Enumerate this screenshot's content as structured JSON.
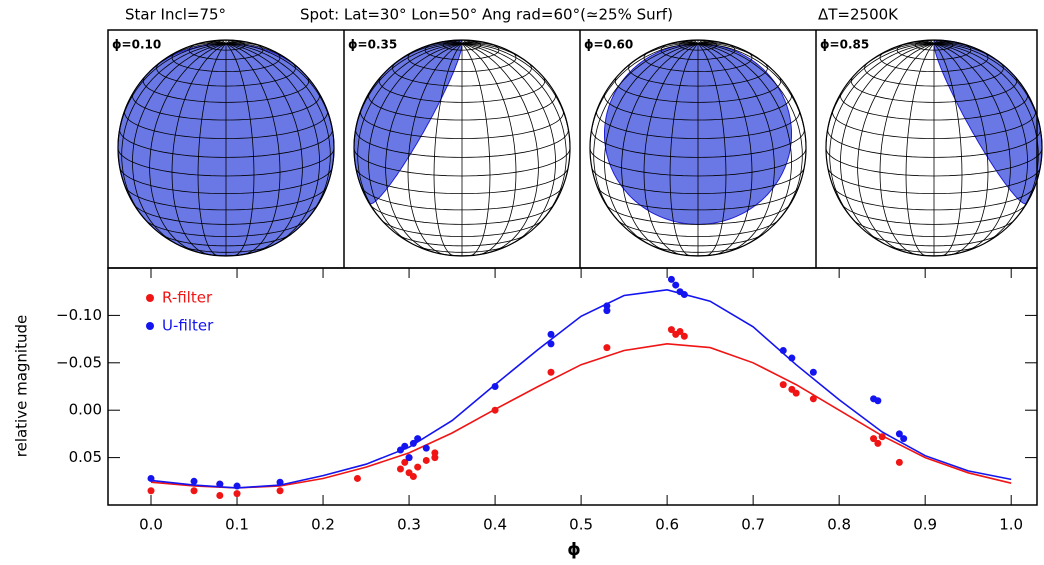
{
  "title_parts": [
    "Star Incl=75°",
    "Spot: Lat=30° Lon=50° Ang rad=60°(≃25% Surf)",
    "ΔT=2500K"
  ],
  "panels": [
    {
      "label": "ϕ=0.10"
    },
    {
      "label": "ϕ=0.35"
    },
    {
      "label": "ϕ=0.60"
    },
    {
      "label": "ϕ=0.85"
    }
  ],
  "chart_data": {
    "type": "scatter",
    "xlabel": "ϕ",
    "ylabel": "relative magnitude",
    "xlim": [
      -0.05,
      1.03
    ],
    "ylim": [
      0.1,
      -0.15
    ],
    "xticks": [
      {
        "value": 0,
        "label": "0.0"
      },
      {
        "value": 0.1,
        "label": "0.1"
      },
      {
        "value": 0.2,
        "label": "0.2"
      },
      {
        "value": 0.3,
        "label": "0.3"
      },
      {
        "value": 0.4,
        "label": "0.4"
      },
      {
        "value": 0.5,
        "label": "0.5"
      },
      {
        "value": 0.6,
        "label": "0.6"
      },
      {
        "value": 0.7,
        "label": "0.7"
      },
      {
        "value": 0.8,
        "label": "0.8"
      },
      {
        "value": 0.9,
        "label": "0.9"
      },
      {
        "value": 1.0,
        "label": "1.0"
      }
    ],
    "yticks": [
      {
        "value": -0.1,
        "label": "−0.10"
      },
      {
        "value": -0.05,
        "label": "−0.05"
      },
      {
        "value": 0,
        "label": "0.00"
      },
      {
        "value": 0.05,
        "label": "0.05"
      }
    ],
    "legend": "upper left",
    "series": [
      {
        "name": "R-filter",
        "color": "#f01414",
        "x": [
          0,
          0.05,
          0.08,
          0.08,
          0.1,
          0.15,
          0.24,
          0.29,
          0.295,
          0.3,
          0.3,
          0.305,
          0.31,
          0.32,
          0.33,
          0.33,
          0.4,
          0.465,
          0.53,
          0.605,
          0.61,
          0.615,
          0.62,
          0.735,
          0.745,
          0.75,
          0.77,
          0.84,
          0.845,
          0.85,
          0.87
        ],
        "values": [
          0.085,
          0.085,
          0.09,
          0.078,
          0.088,
          0.085,
          0.072,
          0.062,
          0.055,
          0.066,
          0.05,
          0.07,
          0.06,
          0.053,
          0.045,
          0.05,
          0.0,
          -0.04,
          -0.066,
          -0.085,
          -0.08,
          -0.083,
          -0.078,
          -0.027,
          -0.022,
          -0.018,
          -0.012,
          0.03,
          0.035,
          0.028,
          0.055
        ]
      },
      {
        "name": "U-filter",
        "color": "#1414f0",
        "x": [
          0,
          0.05,
          0.08,
          0.1,
          0.15,
          0.29,
          0.295,
          0.3,
          0.305,
          0.31,
          0.32,
          0.4,
          0.465,
          0.465,
          0.53,
          0.53,
          0.605,
          0.61,
          0.615,
          0.62,
          0.735,
          0.745,
          0.77,
          0.84,
          0.845,
          0.87,
          0.875
        ],
        "values": [
          0.072,
          0.075,
          0.078,
          0.08,
          0.076,
          0.042,
          0.038,
          0.05,
          0.035,
          0.03,
          0.04,
          -0.025,
          -0.08,
          -0.07,
          -0.11,
          -0.105,
          -0.138,
          -0.132,
          -0.125,
          -0.122,
          -0.063,
          -0.055,
          -0.04,
          -0.012,
          -0.01,
          0.025,
          0.03
        ]
      }
    ],
    "model_x": [
      0,
      0.05,
      0.1,
      0.15,
      0.2,
      0.25,
      0.3,
      0.35,
      0.4,
      0.45,
      0.5,
      0.55,
      0.6,
      0.65,
      0.7,
      0.75,
      0.8,
      0.85,
      0.9,
      0.95,
      1.0
    ],
    "models": [
      {
        "color": "#f01414",
        "values": [
          0.076,
          0.08,
          0.082,
          0.08,
          0.072,
          0.06,
          0.045,
          0.024,
          -0.001,
          -0.025,
          -0.048,
          -0.063,
          -0.07,
          -0.066,
          -0.05,
          -0.027,
          0.0,
          0.027,
          0.05,
          0.066,
          0.077
        ]
      },
      {
        "color": "#1414f0",
        "values": [
          0.074,
          0.079,
          0.082,
          0.079,
          0.069,
          0.057,
          0.039,
          0.011,
          -0.027,
          -0.064,
          -0.099,
          -0.121,
          -0.127,
          -0.115,
          -0.088,
          -0.048,
          -0.011,
          0.023,
          0.048,
          0.064,
          0.073
        ]
      }
    ]
  }
}
